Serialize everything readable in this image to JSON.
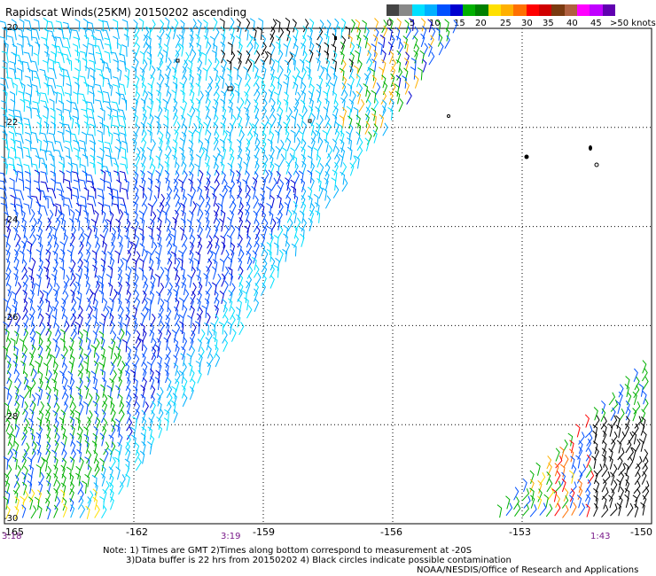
{
  "title": "Rapidscat Winds(25KM) 20150202 ascending",
  "legend": {
    "colors": [
      "#444444",
      "#888888",
      "#00e0ff",
      "#00b0ff",
      "#0050ff",
      "#0000d0",
      "#00b000",
      "#008000",
      "#ffe000",
      "#ffb000",
      "#ff7000",
      "#ff0000",
      "#d00000",
      "#7a3a10",
      "#b06040",
      "#ff00ff",
      "#c000ff",
      "#6000b0"
    ],
    "labels": [
      "0",
      "5",
      "10",
      "15",
      "20",
      "25",
      "30",
      "35",
      "40",
      "45",
      ">50 knots"
    ]
  },
  "lat_labels": [
    "-20",
    "-22",
    "-24",
    "-26",
    "-28",
    "-30"
  ],
  "lon_labels": [
    "-165",
    "-162",
    "-159",
    "-156",
    "-153",
    "-150"
  ],
  "time_labels": [
    "3:18",
    "3:19",
    "1:43"
  ],
  "notes": [
    "Note: 1) Times are GMT 2)Times along bottom correspond to measurement at -20S",
    "3)Data buffer is 22 hrs from 20150202 4) Black circles indicate possible contamination",
    "NOAA/NESDIS/Office of Research and Applications"
  ],
  "map": {
    "lon_range": [
      -165,
      -150
    ],
    "lat_range": [
      -30,
      -20
    ],
    "grid_lons": [
      -162,
      -159,
      -156,
      -153
    ],
    "grid_lats": [
      -22,
      -24,
      -26,
      -28
    ],
    "swaths": [
      {
        "name": "main",
        "color_range": [
          "cyan",
          "blue",
          "green",
          "yellow"
        ]
      },
      {
        "name": "southeast",
        "color_range": [
          "green",
          "yellow",
          "orange",
          "red",
          "black"
        ]
      }
    ]
  }
}
